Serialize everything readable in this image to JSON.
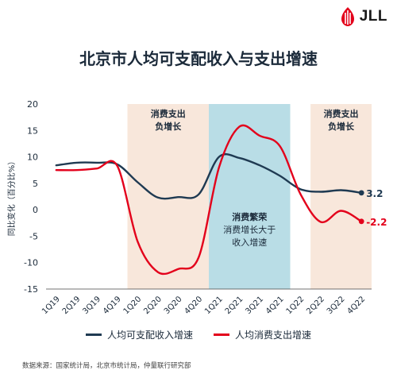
{
  "header": {
    "logo_text": "JLL",
    "title": "北京市人均可支配收入与支出增速"
  },
  "colors": {
    "income": "#1f3a52",
    "spending": "#e3001b",
    "negative_band": "#f8e7db",
    "boom_band": "#b9dde6"
  },
  "chart_data": {
    "type": "line",
    "title": "北京市人均可支配收入与支出增速",
    "ylabel": "同比变化（百分比%）",
    "ylim": [
      -15,
      20
    ],
    "yticks": [
      -15,
      -10,
      -5,
      0,
      5,
      10,
      15,
      20
    ],
    "categories": [
      "1Q19",
      "2Q19",
      "3Q19",
      "4Q19",
      "1Q20",
      "2Q20",
      "3Q20",
      "4Q20",
      "1Q21",
      "2Q21",
      "3Q21",
      "4Q21",
      "1Q22",
      "2Q22",
      "3Q22",
      "4Q22"
    ],
    "series": [
      {
        "name": "人均可支配收入增速",
        "values": [
          8.4,
          8.9,
          8.9,
          8.6,
          5.2,
          2.3,
          2.4,
          2.9,
          10.0,
          9.8,
          8.4,
          6.4,
          3.9,
          3.4,
          3.7,
          3.2
        ],
        "end_label": "3.2"
      },
      {
        "name": "人均消费支出增速",
        "values": [
          7.5,
          7.5,
          7.8,
          8.3,
          -6.0,
          -11.8,
          -11.2,
          -9.0,
          8.0,
          15.7,
          14.0,
          12.0,
          3.0,
          -2.3,
          -0.2,
          -2.2
        ],
        "end_label": "-2.2"
      }
    ],
    "bands": [
      {
        "from": "1Q20",
        "to": "4Q20",
        "type": "negative",
        "label_line1": "消费支出",
        "label_line2": "负增长"
      },
      {
        "from": "1Q21",
        "to": "4Q21",
        "type": "boom",
        "label_line1": "消费繁荣",
        "label_line2": "消费增长大于",
        "label_line3": "收入增速"
      },
      {
        "from": "2Q22",
        "to": "4Q22",
        "type": "negative",
        "label_line1": "消费支出",
        "label_line2": "负增长"
      }
    ],
    "grid": false,
    "legend_position": "bottom"
  },
  "footer": {
    "source": "数据来源：国家统计局，北京市统计局，仲量联行研究部"
  }
}
